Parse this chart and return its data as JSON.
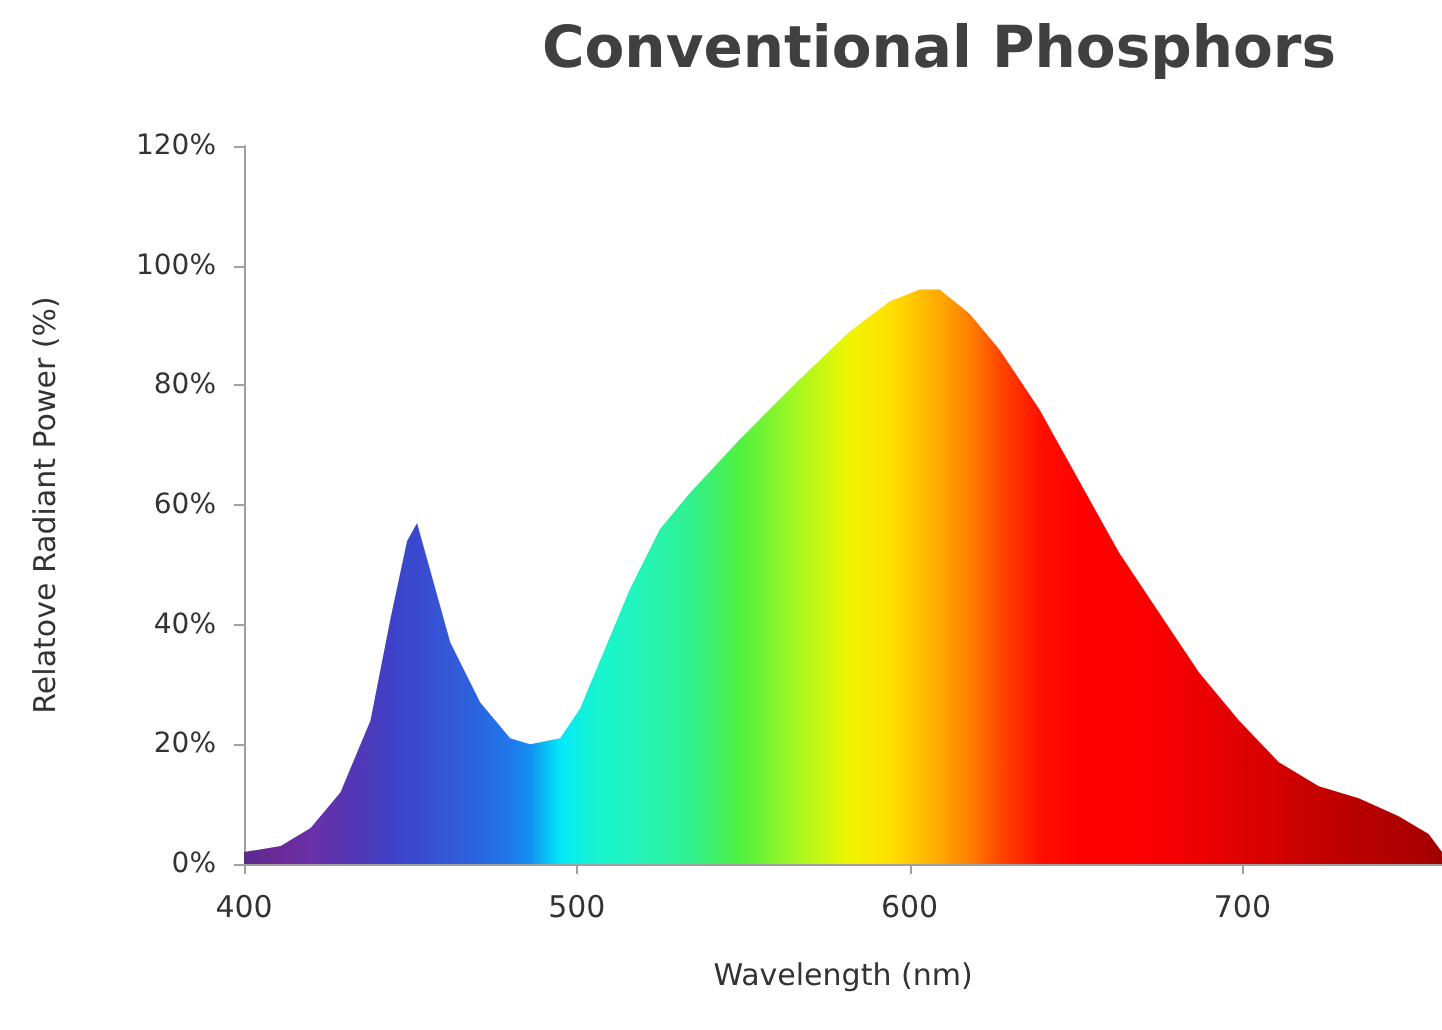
{
  "chart_data": {
    "type": "area",
    "title": "Conventional Phosphors",
    "xlabel": "Wavelength (nm)",
    "ylabel": "Relatove Radiant Power (%)",
    "xlim": [
      400,
      760
    ],
    "xticks": [
      400,
      500,
      600,
      700
    ],
    "ylim": [
      0,
      120
    ],
    "yticks": [
      {
        "value": 0,
        "label": "0%"
      },
      {
        "value": 20,
        "label": "20%"
      },
      {
        "value": 40,
        "label": "40%"
      },
      {
        "value": 60,
        "label": "60%"
      },
      {
        "value": 80,
        "label": "80%"
      },
      {
        "value": 100,
        "label": "100%"
      },
      {
        "value": 120,
        "label": "120%"
      }
    ],
    "marker": "none",
    "series": [
      {
        "x": [
          400,
          411,
          420,
          429,
          438,
          444,
          449,
          452,
          456,
          462,
          471,
          480,
          486,
          495,
          501,
          507,
          516,
          525,
          534,
          549,
          567,
          582,
          594,
          603,
          609,
          618,
          627,
          639,
          651,
          663,
          675,
          687,
          699,
          711,
          723,
          735,
          747,
          756,
          760
        ],
        "values": [
          2,
          3,
          6,
          12,
          24,
          41,
          54,
          57,
          49,
          37,
          27,
          21,
          20,
          21,
          26,
          34,
          46,
          56,
          62,
          71,
          81,
          89,
          94,
          96,
          96,
          92,
          86,
          76,
          64,
          52,
          42,
          32,
          24,
          17,
          13,
          11,
          8,
          5,
          2
        ],
        "colors": [
          "#5a2a8c",
          "#6a2a9a",
          "#6a30a8",
          "#5a34b0",
          "#4a3cbc",
          "#4040c8",
          "#3a48cc",
          "#3a48d0",
          "#3850d4",
          "#3458d8",
          "#2a66e0",
          "#1e78ea",
          "#1490f0",
          "#00e8f8",
          "#10f0e0",
          "#18f4cc",
          "#20f4c0",
          "#28f4a8",
          "#30f090",
          "#50f040",
          "#a8f820",
          "#f0f400",
          "#ffe000",
          "#ffc000",
          "#ffa800",
          "#ff8000",
          "#ff4800",
          "#ff1000",
          "#ff0000",
          "#ff0000",
          "#f80000",
          "#ee0000",
          "#e00000",
          "#d40000",
          "#c40000",
          "#b80000",
          "#b00000",
          "#a80000",
          "#a00000"
        ]
      }
    ]
  }
}
